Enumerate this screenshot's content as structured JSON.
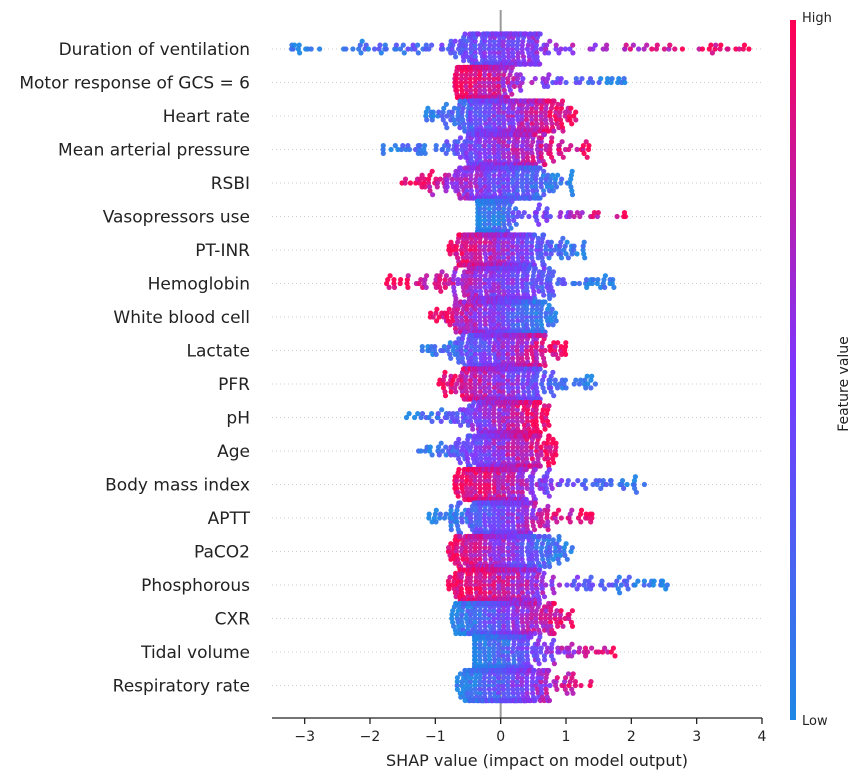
{
  "chart_data": {
    "type": "scatter",
    "subtype": "beeswarm",
    "xlabel": "SHAP value (impact on model output)",
    "xlim": [
      -3.5,
      4.0
    ],
    "xticks": [
      -3,
      -2,
      -1,
      0,
      1,
      2,
      3,
      4
    ],
    "colorbar": {
      "label": "Feature value",
      "high_label": "High",
      "low_label": "Low",
      "low_color": "#1e88e5",
      "high_color": "#ff0052"
    },
    "zero_line": true,
    "features": [
      {
        "name": "Duration of ventilation",
        "min": -3.2,
        "max": 3.8,
        "core_low": -0.35,
        "core_high": 0.45,
        "low_side": "neg",
        "outliers_low": [
          -3.2,
          -2.9
        ],
        "outliers_high": [
          3.6,
          3.8
        ]
      },
      {
        "name": "Motor response of GCS = 6",
        "min": -0.7,
        "max": 1.9,
        "core_low": -0.45,
        "core_high": -0.05,
        "low_side": "pos",
        "outliers_low": [],
        "outliers_high": [
          1.9
        ]
      },
      {
        "name": "Heart rate",
        "min": -1.2,
        "max": 1.15,
        "core_low": -0.3,
        "core_high": 0.5,
        "low_side": "neg",
        "outliers_low": [],
        "outliers_high": []
      },
      {
        "name": "Mean arterial pressure",
        "min": -1.8,
        "max": 1.35,
        "core_low": -0.3,
        "core_high": 0.35,
        "low_side": "neg",
        "outliers_low": [
          -1.8
        ],
        "outliers_high": [
          1.35
        ]
      },
      {
        "name": "RSBI",
        "min": -1.55,
        "max": 1.1,
        "core_low": -0.35,
        "core_high": 0.35,
        "low_side": "pos",
        "outliers_low": [],
        "outliers_high": []
      },
      {
        "name": "Vasopressors use",
        "min": -0.35,
        "max": 1.95,
        "core_low": -0.35,
        "core_high": -0.05,
        "low_side": "neg",
        "outliers_low": [],
        "outliers_high": []
      },
      {
        "name": "PT-INR",
        "min": -0.8,
        "max": 1.3,
        "core_low": -0.3,
        "core_high": 0.4,
        "low_side": "pos",
        "outliers_low": [],
        "outliers_high": []
      },
      {
        "name": "Hemoglobin",
        "min": -1.75,
        "max": 1.8,
        "core_low": -0.3,
        "core_high": 0.35,
        "low_side": "pos",
        "outliers_low": [],
        "outliers_high": []
      },
      {
        "name": "White blood cell",
        "min": -1.1,
        "max": 0.85,
        "core_low": -0.3,
        "core_high": 0.35,
        "low_side": "pos",
        "outliers_low": [],
        "outliers_high": []
      },
      {
        "name": "Lactate",
        "min": -1.2,
        "max": 1.05,
        "core_low": -0.25,
        "core_high": 0.35,
        "low_side": "neg",
        "outliers_low": [
          -1.2
        ],
        "outliers_high": []
      },
      {
        "name": "PFR",
        "min": -0.95,
        "max": 1.45,
        "core_low": -0.3,
        "core_high": 0.35,
        "low_side": "pos",
        "outliers_low": [],
        "outliers_high": [
          1.45
        ]
      },
      {
        "name": "pH",
        "min": -1.45,
        "max": 0.75,
        "core_low": -0.2,
        "core_high": 0.25,
        "low_side": "neg",
        "outliers_low": [],
        "outliers_high": []
      },
      {
        "name": "Age",
        "min": -1.3,
        "max": 0.85,
        "core_low": -0.25,
        "core_high": 0.35,
        "low_side": "neg",
        "outliers_low": [],
        "outliers_high": []
      },
      {
        "name": "Body mass index",
        "min": -0.7,
        "max": 2.2,
        "core_low": -0.3,
        "core_high": 0.3,
        "low_side": "pos",
        "outliers_low": [],
        "outliers_high": [
          2.05,
          2.2
        ]
      },
      {
        "name": "APTT",
        "min": -1.1,
        "max": 1.4,
        "core_low": -0.25,
        "core_high": 0.3,
        "low_side": "neg",
        "outliers_low": [
          -1.1
        ],
        "outliers_high": []
      },
      {
        "name": "PaCO2",
        "min": -0.8,
        "max": 1.1,
        "core_low": -0.3,
        "core_high": 0.35,
        "low_side": "pos",
        "outliers_low": [],
        "outliers_high": []
      },
      {
        "name": "Phosphorous",
        "min": -0.8,
        "max": 2.55,
        "core_low": -0.3,
        "core_high": 0.35,
        "low_side": "pos",
        "outliers_low": [],
        "outliers_high": [
          1.8,
          1.95,
          2.1,
          2.2,
          2.35,
          2.45,
          2.55
        ]
      },
      {
        "name": "CXR",
        "min": -0.75,
        "max": 1.1,
        "core_low": -0.3,
        "core_high": 0.35,
        "low_side": "neg",
        "outliers_low": [],
        "outliers_high": []
      },
      {
        "name": "Tidal volume",
        "min": -0.4,
        "max": 1.75,
        "core_low": -0.25,
        "core_high": 0.3,
        "low_side": "neg",
        "outliers_low": [],
        "outliers_high": []
      },
      {
        "name": "Respiratory rate",
        "min": -0.7,
        "max": 1.45,
        "core_low": -0.25,
        "core_high": 0.35,
        "low_side": "neg",
        "outliers_low": [],
        "outliers_high": []
      }
    ]
  }
}
